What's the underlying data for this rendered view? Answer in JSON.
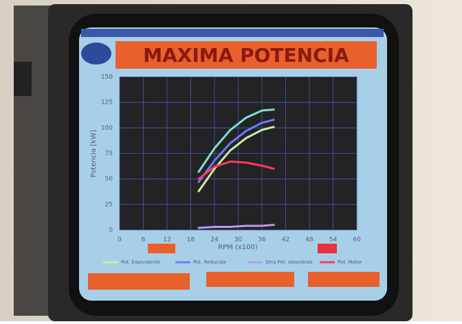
{
  "chart_data": {
    "type": "line",
    "title": "MAXIMA POTENCIA",
    "y_label": "Potencia [kW]",
    "x_label": "RPM (x100)",
    "x": [
      20,
      24,
      28,
      32,
      36,
      39
    ],
    "series": [
      {
        "name": "Pot. Equivalente",
        "color": "#c8f0a0",
        "values": [
          38,
          60,
          78,
          90,
          98,
          101
        ]
      },
      {
        "color": "#7ee0d0",
        "values": [
          57,
          80,
          98,
          110,
          117,
          118
        ]
      },
      {
        "name": "Pot. Reducida",
        "color": "#6a7cff",
        "values": [
          47,
          68,
          85,
          97,
          105,
          108
        ]
      },
      {
        "name": "Otra Pot. Absorbida",
        "color": "#b89cf0",
        "values": [
          2,
          3,
          3,
          4,
          4,
          5
        ]
      },
      {
        "name": "Pot. Motor",
        "color": "#ff3a5a",
        "values": [
          50,
          62,
          67,
          66,
          63,
          60
        ]
      }
    ],
    "xlim": [
      0,
      60
    ],
    "xticks": [
      0,
      6,
      12,
      18,
      24,
      30,
      36,
      42,
      48,
      54,
      60
    ],
    "ylim": [
      0,
      150
    ],
    "yticks": [
      0,
      25,
      50,
      75,
      100,
      125,
      150
    ],
    "grid": true
  }
}
